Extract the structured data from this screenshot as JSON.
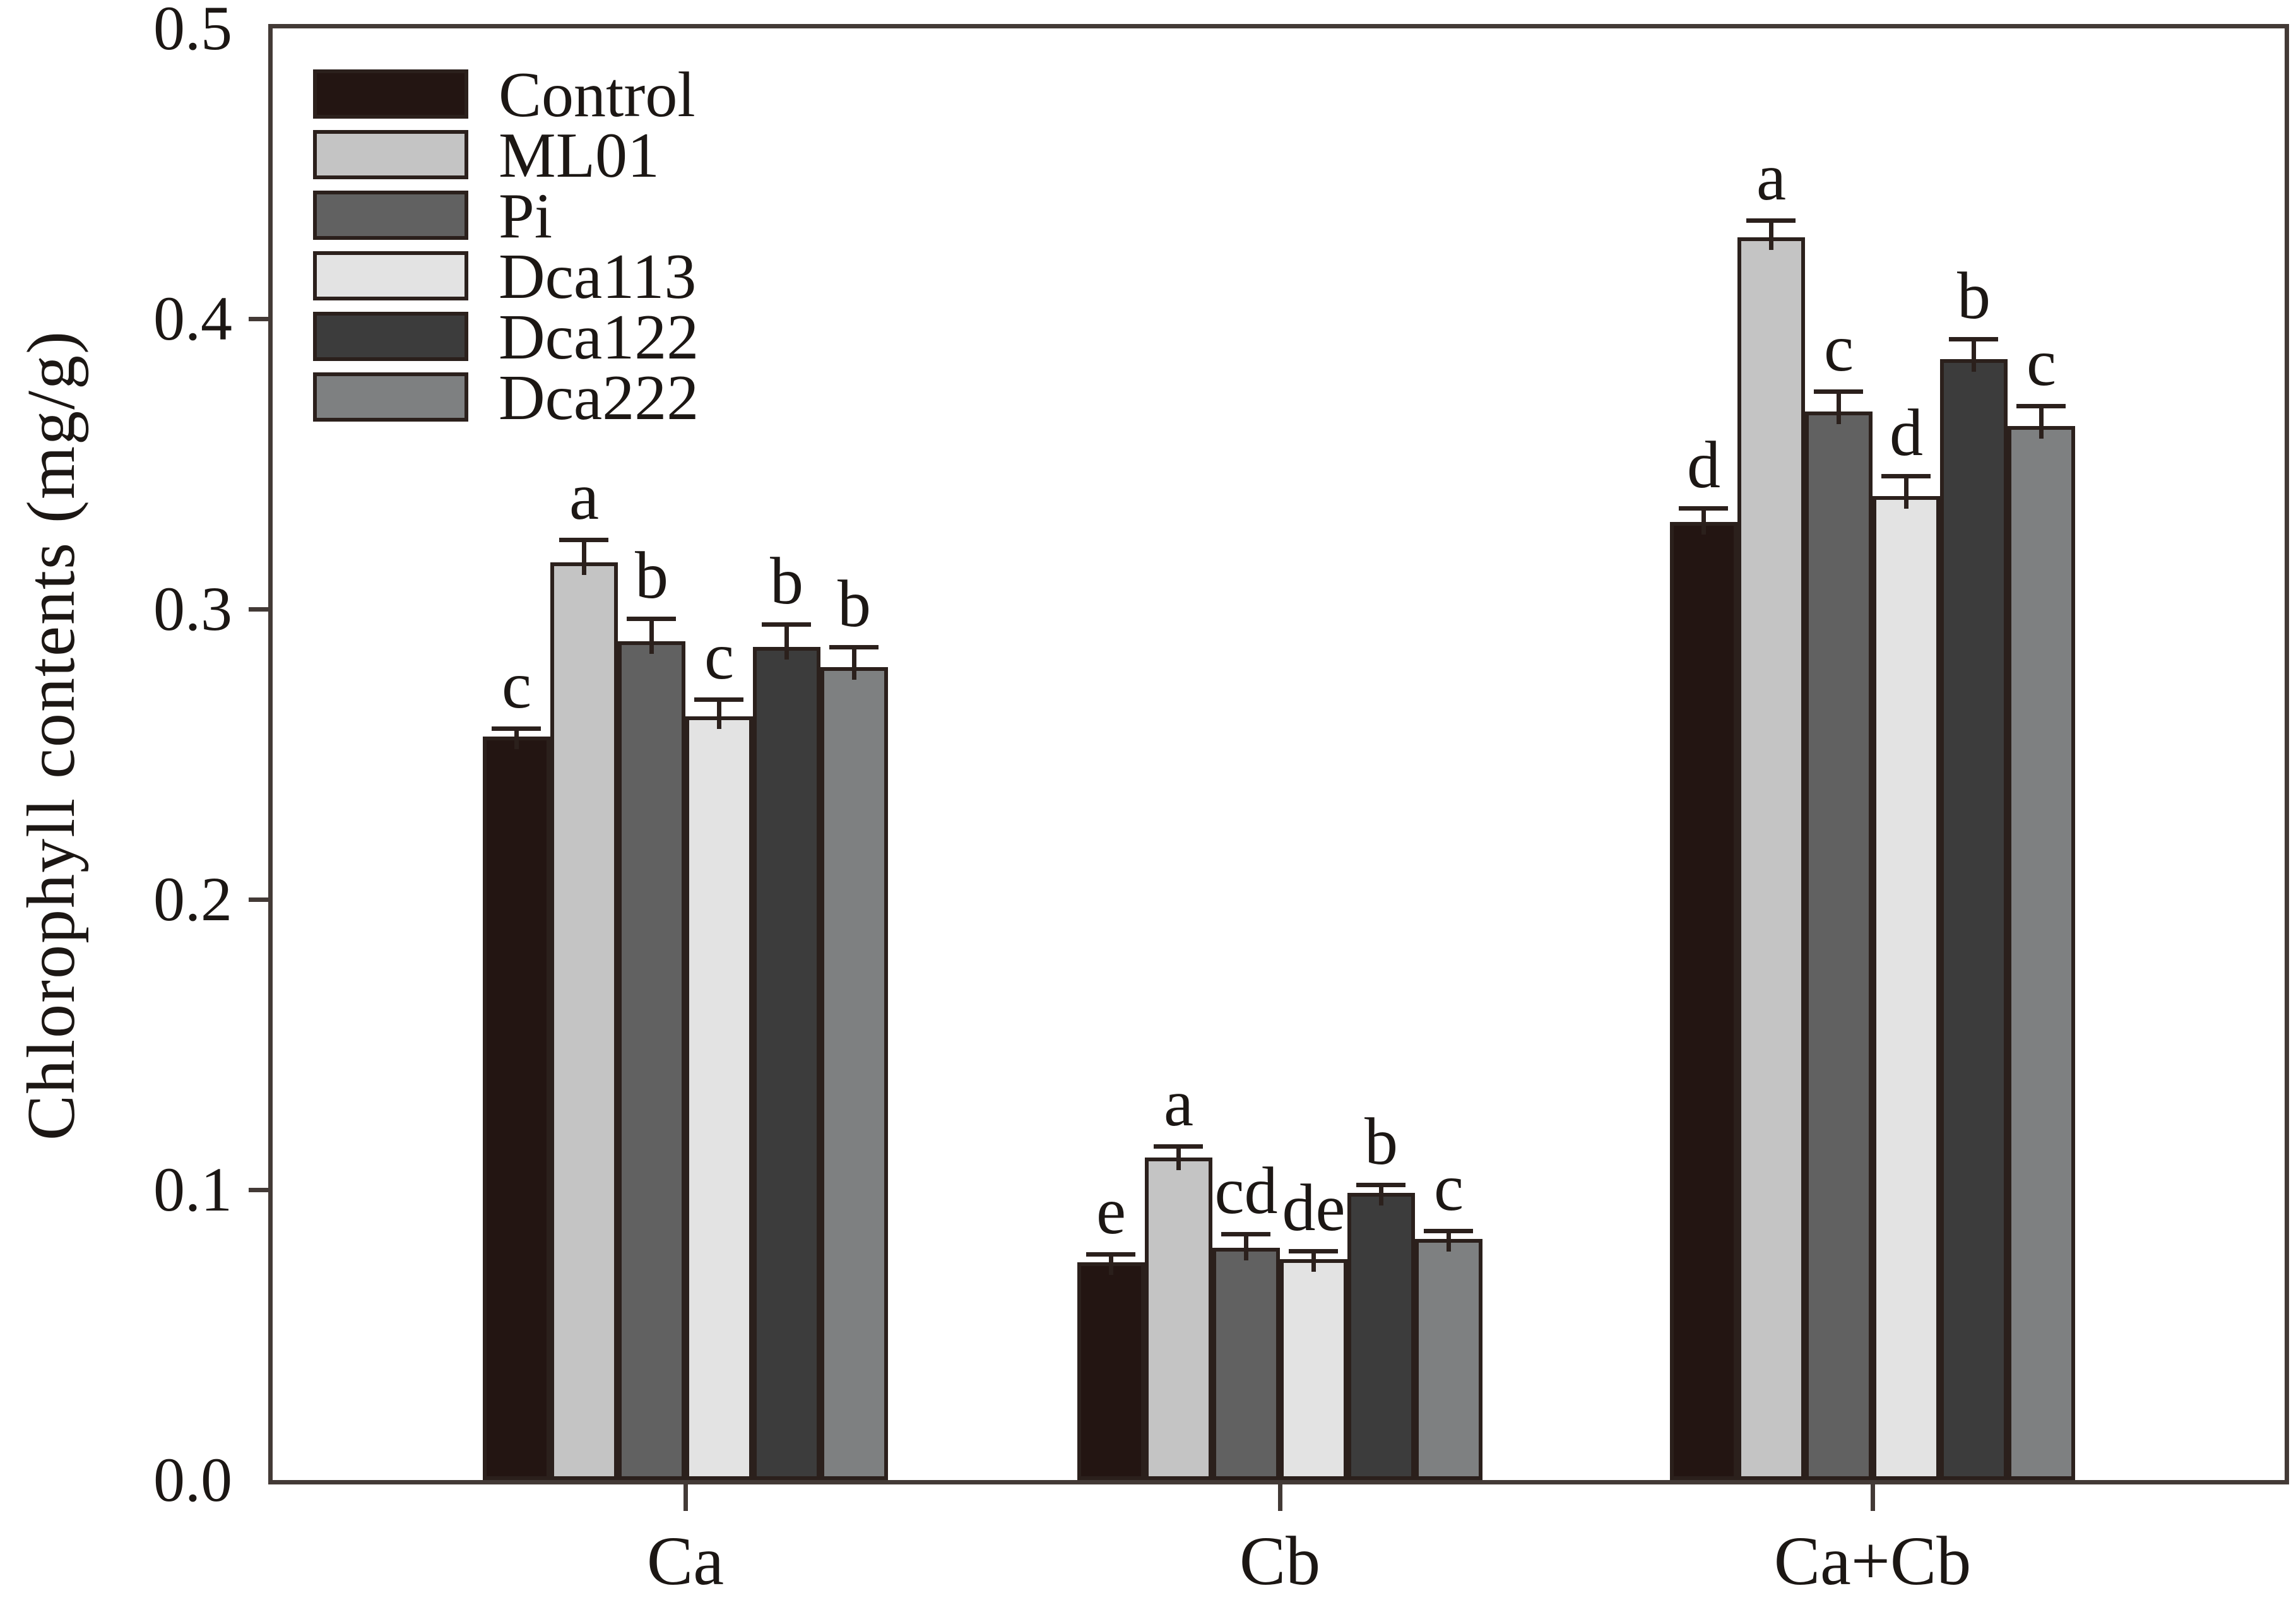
{
  "figure": {
    "background": "#ffffff",
    "axis_color": "#433a36",
    "outline_color": "#2b201c",
    "text_color": "#1c1714"
  },
  "chart_data": {
    "type": "bar",
    "title": "",
    "xlabel": "",
    "ylabel": "Chlorophyll contents (mg/g)",
    "ylim": [
      0.0,
      0.5
    ],
    "ytick_labels": [
      "0.0",
      "0.1",
      "0.2",
      "0.3",
      "0.4",
      "0.5"
    ],
    "grid": false,
    "legend_position": "upper left inside",
    "categories": [
      "Ca",
      "Cb",
      "Ca+Cb"
    ],
    "series": [
      {
        "name": "Control",
        "color": "#231512",
        "values": [
          0.256,
          0.075,
          0.33
        ],
        "errors": [
          0.002,
          0.002,
          0.004
        ],
        "letters": [
          "c",
          "e",
          "d"
        ]
      },
      {
        "name": "ML01",
        "color": "#c4c4c4",
        "values": [
          0.316,
          0.111,
          0.428
        ],
        "errors": [
          0.007,
          0.003,
          0.005
        ],
        "letters": [
          "a",
          "a",
          "a"
        ]
      },
      {
        "name": "Pi",
        "color": "#616161",
        "values": [
          0.289,
          0.08,
          0.368
        ],
        "errors": [
          0.007,
          0.004,
          0.006
        ],
        "letters": [
          "b",
          "cd",
          "c"
        ]
      },
      {
        "name": "Dca113",
        "color": "#e3e3e3",
        "values": [
          0.263,
          0.076,
          0.339
        ],
        "errors": [
          0.005,
          0.002,
          0.006
        ],
        "letters": [
          "c",
          "de",
          "d"
        ]
      },
      {
        "name": "Dca122",
        "color": "#3c3c3c",
        "values": [
          0.287,
          0.099,
          0.386
        ],
        "errors": [
          0.007,
          0.002,
          0.006
        ],
        "letters": [
          "b",
          "b",
          "b"
        ]
      },
      {
        "name": "Dca222",
        "color": "#7e8081",
        "values": [
          0.28,
          0.083,
          0.363
        ],
        "errors": [
          0.006,
          0.002,
          0.006
        ],
        "letters": [
          "b",
          "c",
          "c"
        ]
      }
    ]
  }
}
